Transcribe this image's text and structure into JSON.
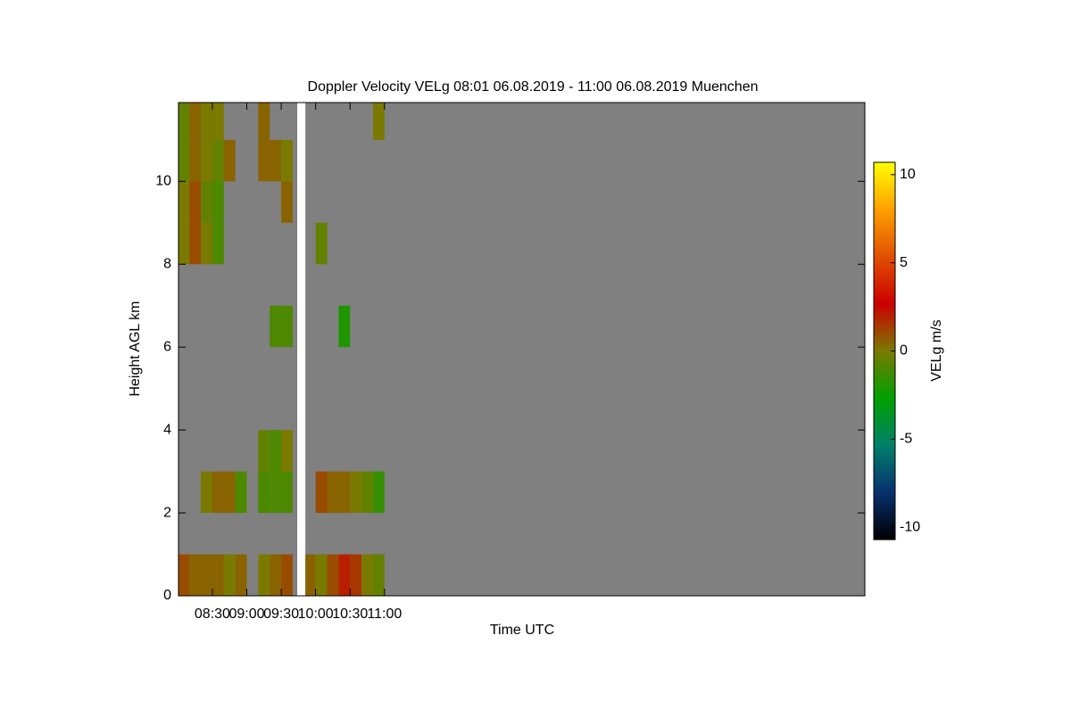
{
  "chart_data": {
    "type": "heatmap",
    "title": "Doppler Velocity VELg   08:01 06.08.2019 - 11:00 06.08.2019 Muenchen",
    "xlabel": "Time UTC",
    "ylabel": "Height AGL km",
    "colorbar_label": "VELg m/s",
    "x": [
      485,
      495,
      505,
      515,
      525,
      535,
      545,
      555,
      565,
      575,
      585,
      595,
      605,
      615,
      625,
      635,
      645,
      655
    ],
    "y": [
      0.5,
      1.5,
      2.5,
      3.5,
      4.5,
      5.5,
      6.5,
      7.5,
      8.5,
      9.5,
      10.5,
      11.5
    ],
    "z": [
      [
        1,
        0.5,
        0.5,
        0.5,
        0,
        0.5,
        null,
        0,
        0.5,
        1,
        null,
        0.5,
        0,
        1,
        2,
        1.5,
        0,
        -0.5
      ],
      [
        null,
        null,
        null,
        null,
        null,
        null,
        null,
        null,
        null,
        null,
        null,
        null,
        null,
        null,
        null,
        null,
        null,
        null
      ],
      [
        null,
        null,
        0,
        0.5,
        0.5,
        -1,
        null,
        -1,
        -1,
        -1,
        null,
        null,
        1,
        0.5,
        0.5,
        0,
        -0.5,
        -1.5
      ],
      [
        null,
        null,
        null,
        null,
        null,
        null,
        null,
        -0.5,
        -1,
        0,
        null,
        null,
        null,
        null,
        null,
        null,
        null,
        null
      ],
      [
        null,
        null,
        null,
        null,
        null,
        null,
        null,
        null,
        null,
        null,
        null,
        null,
        null,
        null,
        null,
        null,
        null,
        null
      ],
      [
        null,
        null,
        null,
        null,
        null,
        null,
        null,
        null,
        null,
        null,
        null,
        null,
        null,
        null,
        null,
        null,
        null,
        null
      ],
      [
        null,
        null,
        null,
        null,
        null,
        null,
        null,
        null,
        -1,
        -1,
        null,
        null,
        null,
        null,
        -2,
        null,
        null,
        null
      ],
      [
        null,
        null,
        null,
        null,
        null,
        null,
        null,
        null,
        null,
        null,
        null,
        null,
        null,
        null,
        null,
        null,
        null,
        null
      ],
      [
        0,
        1,
        0,
        -1,
        null,
        null,
        null,
        null,
        null,
        null,
        null,
        null,
        -0.5,
        null,
        null,
        null,
        null,
        null
      ],
      [
        0,
        1,
        -0.5,
        -1,
        null,
        null,
        null,
        null,
        null,
        0.5,
        null,
        null,
        null,
        null,
        null,
        null,
        null,
        null
      ],
      [
        -0.5,
        0.5,
        0,
        -0.5,
        0.5,
        null,
        null,
        0.5,
        0.5,
        0,
        null,
        null,
        null,
        null,
        null,
        null,
        null,
        null
      ],
      [
        -0.5,
        0.5,
        0,
        0,
        null,
        null,
        null,
        0.5,
        null,
        null,
        null,
        null,
        null,
        null,
        null,
        null,
        null,
        0
      ]
    ],
    "xlim": [
      480.5,
      1078.5
    ],
    "xticks": [
      {
        "value": 510,
        "label": "08:30"
      },
      {
        "value": 540,
        "label": "09:00"
      },
      {
        "value": 570,
        "label": "09:30"
      },
      {
        "value": 600,
        "label": "10:00"
      },
      {
        "value": 630,
        "label": "10:30"
      },
      {
        "value": 660,
        "label": "11:00"
      }
    ],
    "ylim": [
      0,
      11.9
    ],
    "yticks": [
      0,
      2,
      4,
      6,
      8,
      10
    ],
    "clim": [
      -10.7,
      10.7
    ],
    "cticks": [
      -10,
      -5,
      0,
      5,
      10
    ],
    "colormap": [
      "#000000",
      "#06306e",
      "#00806a",
      "#00a000",
      "#7a7a00",
      "#cc0000",
      "#e05000",
      "#ffa000",
      "#ffff00"
    ],
    "background": "#808080",
    "data_gaps": [
      [
        584,
        591
      ]
    ]
  }
}
